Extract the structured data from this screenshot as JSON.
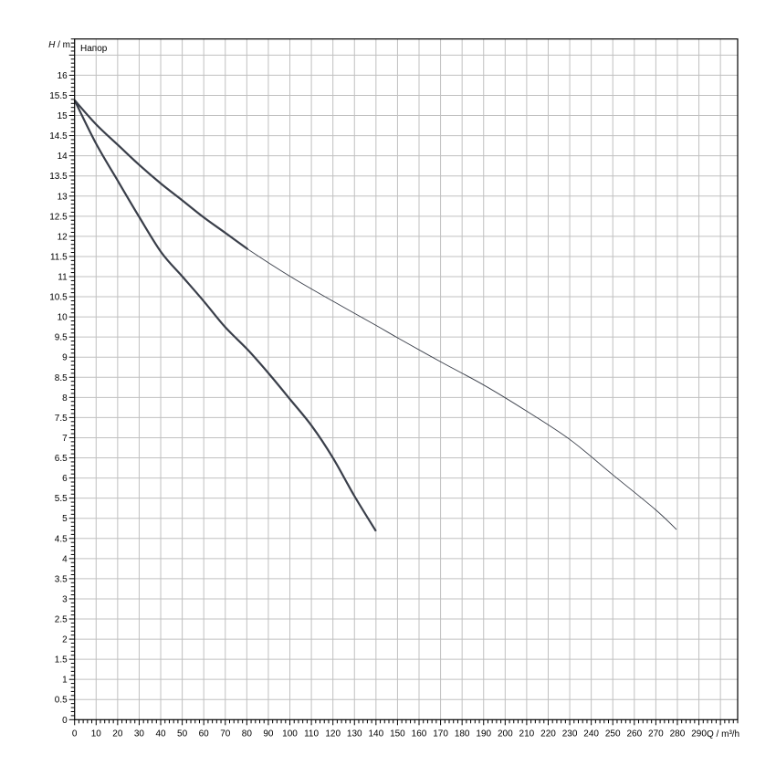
{
  "chart_data": {
    "type": "line",
    "title": "Напор",
    "ylabel": {
      "symbol": "H",
      "unit": " / m"
    },
    "xlabel": "Q / m³/h",
    "xlim": [
      0,
      308
    ],
    "ylim": [
      0,
      16.9
    ],
    "x_major_step": 10,
    "x_minor_step": 2,
    "y_major_step": 0.5,
    "y_minor_step": 0.1,
    "x_tick_labels": [
      "0",
      "10",
      "20",
      "30",
      "40",
      "50",
      "60",
      "70",
      "80",
      "90",
      "100",
      "110",
      "120",
      "130",
      "140",
      "150",
      "160",
      "170",
      "180",
      "190",
      "200",
      "210",
      "220",
      "230",
      "240",
      "250",
      "260",
      "270",
      "280",
      "290"
    ],
    "y_tick_labels": [
      "0",
      "0.5",
      "1",
      "1.5",
      "2",
      "2.5",
      "3",
      "3.5",
      "4",
      "4.5",
      "5",
      "5.5",
      "6",
      "6.5",
      "7",
      "7.5",
      "8",
      "8.5",
      "9",
      "9.5",
      "10",
      "10.5",
      "11",
      "11.5",
      "12",
      "12.5",
      "13",
      "13.5",
      "14",
      "14.5",
      "15",
      "15.5",
      "16"
    ],
    "grid": true,
    "colors": {
      "curve": "#3a3f4a",
      "grid": "#c0c0c0",
      "axis": "#000000"
    },
    "series": [
      {
        "line": "thick",
        "points": [
          [
            0,
            15.38
          ],
          [
            10,
            14.3
          ],
          [
            20.5,
            13.34
          ],
          [
            29.7,
            12.51
          ],
          [
            40.3,
            11.6
          ],
          [
            50.1,
            11.0
          ],
          [
            60,
            10.39
          ],
          [
            69.9,
            9.75
          ],
          [
            80.5,
            9.18
          ],
          [
            90.4,
            8.58
          ],
          [
            100.3,
            7.94
          ],
          [
            110.2,
            7.29
          ],
          [
            120,
            6.5
          ],
          [
            129.9,
            5.56
          ],
          [
            140,
            4.68
          ]
        ]
      },
      {
        "line": "thick-to-78-then-thin",
        "points": [
          [
            0,
            15.38
          ],
          [
            10,
            14.78
          ],
          [
            20.5,
            14.25
          ],
          [
            30.3,
            13.76
          ],
          [
            40.3,
            13.3
          ],
          [
            50.1,
            12.89
          ],
          [
            60,
            12.47
          ],
          [
            69.9,
            12.09
          ],
          [
            80.5,
            11.68
          ],
          [
            100.3,
            11.0
          ],
          [
            120,
            10.39
          ],
          [
            140,
            9.79
          ],
          [
            150.4,
            9.47
          ],
          [
            170.2,
            8.88
          ],
          [
            190,
            8.31
          ],
          [
            209.7,
            7.67
          ],
          [
            230.2,
            6.95
          ],
          [
            250,
            6.08
          ],
          [
            269.7,
            5.22
          ],
          [
            279.6,
            4.72
          ]
        ]
      }
    ]
  }
}
